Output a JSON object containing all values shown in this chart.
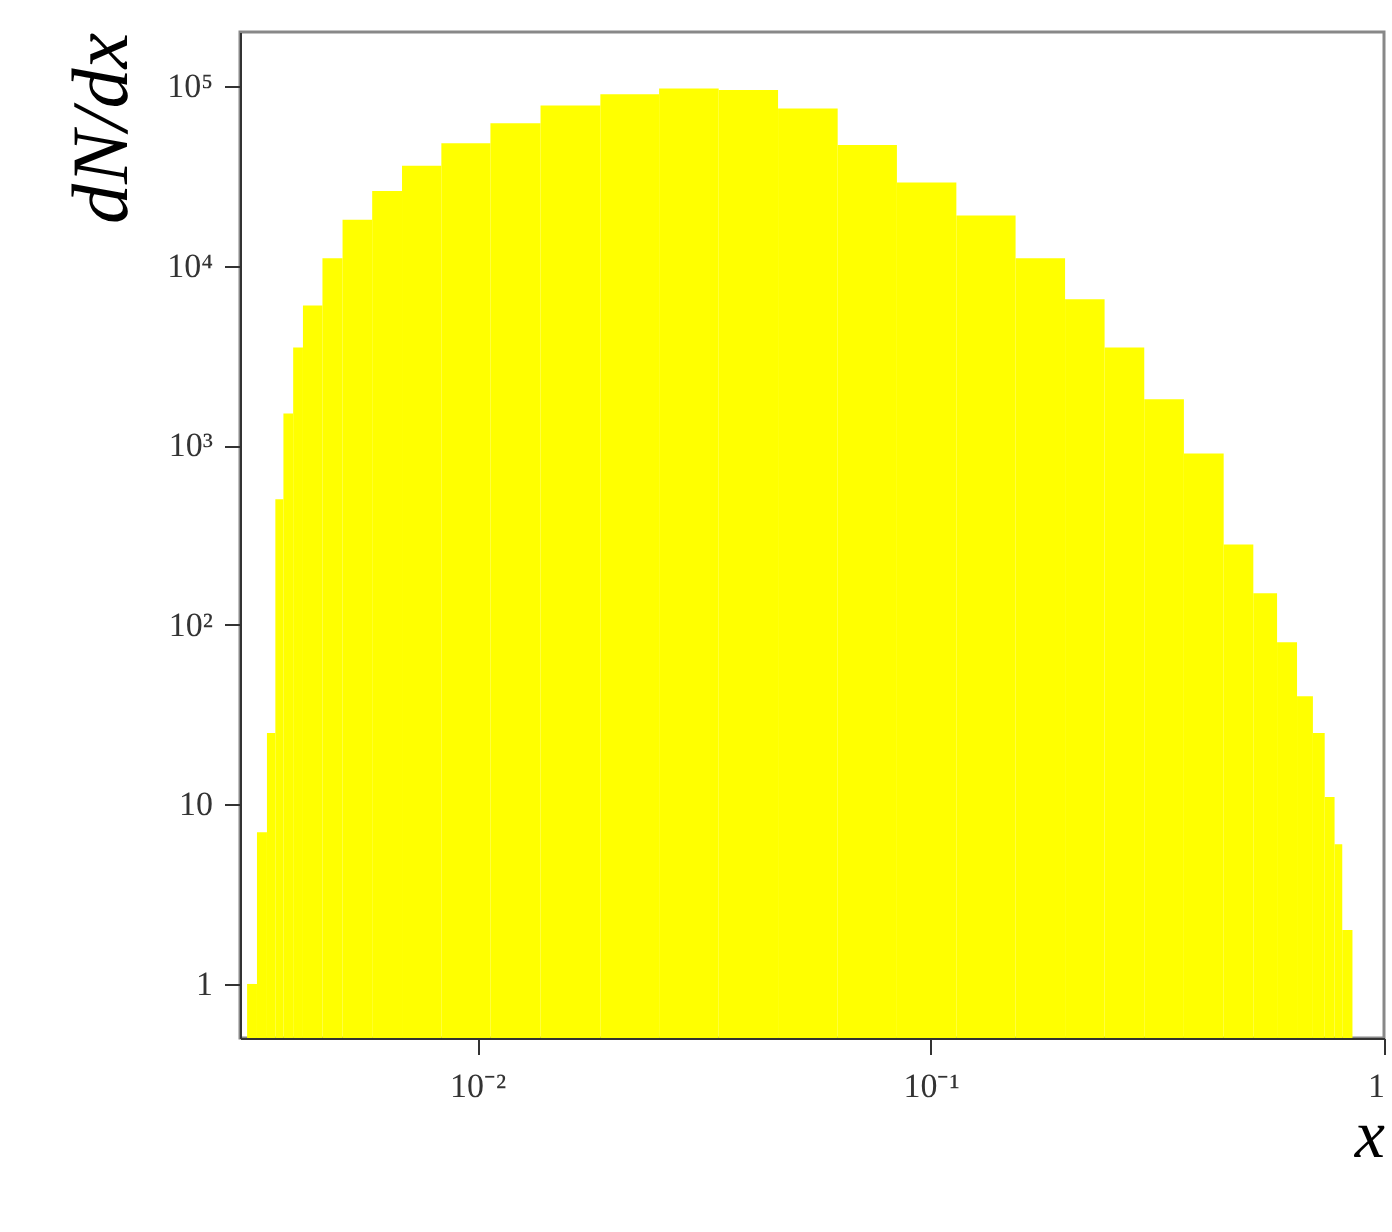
{
  "chart_data": {
    "type": "histogram",
    "xlabel": "x",
    "ylabel": "dN/dx",
    "log": "xy",
    "grid": false,
    "color": "#ffff00",
    "bins": [
      0.00311,
      0.00327,
      0.00344,
      0.00359,
      0.00374,
      0.00393,
      0.00413,
      0.00456,
      0.00505,
      0.00587,
      0.00683,
      0.00834,
      0.0107,
      0.0138,
      0.0187,
      0.0252,
      0.0341,
      0.0461,
      0.0624,
      0.0843,
      0.114,
      0.154,
      0.198,
      0.242,
      0.296,
      0.362,
      0.443,
      0.515,
      0.581,
      0.643,
      0.697,
      0.74,
      0.778,
      0.809,
      0.852
    ],
    "values": [
      1,
      7,
      25,
      500,
      1500,
      3500,
      6000,
      11000,
      18000,
      26000,
      36000,
      48000,
      62000,
      78000,
      90000,
      97000,
      95000,
      75000,
      47000,
      29000,
      19000,
      11000,
      6500,
      3500,
      1800,
      900,
      280,
      150,
      80,
      40,
      25,
      11,
      6,
      2
    ],
    "xlim": [
      0.003,
      1
    ],
    "ylim": [
      0.5,
      200000
    ],
    "xticks": [
      {
        "value": 0.01,
        "label": "10⁻²"
      },
      {
        "value": 0.1,
        "label": "10⁻¹"
      },
      1
    ],
    "yticks": [
      1,
      10,
      {
        "value": 100,
        "label": "10²"
      },
      {
        "value": 1000,
        "label": "10³"
      },
      {
        "value": 10000,
        "label": "10⁴"
      },
      {
        "value": 100000,
        "label": "10⁵"
      }
    ]
  }
}
